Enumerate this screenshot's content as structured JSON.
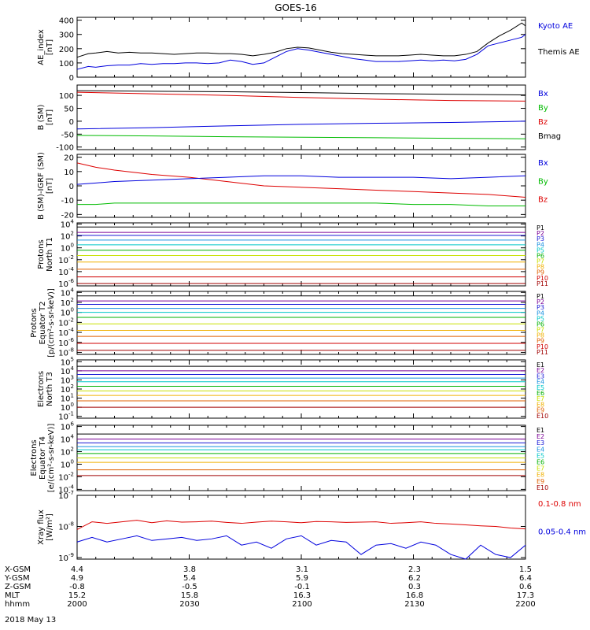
{
  "title": "GOES-16",
  "date_label": "2018 May 13",
  "orbit_rows": [
    {
      "name": "X-GSM",
      "values": [
        "4.4",
        "3.8",
        "3.1",
        "2.3",
        "1.5"
      ]
    },
    {
      "name": "Y-GSM",
      "values": [
        "4.9",
        "5.4",
        "5.9",
        "6.2",
        "6.4"
      ]
    },
    {
      "name": "Z-GSM",
      "values": [
        "-0.8",
        "-0.5",
        "-0.1",
        "0.3",
        "0.6"
      ]
    },
    {
      "name": "MLT",
      "values": [
        "15.2",
        "15.8",
        "16.3",
        "16.8",
        "17.3"
      ]
    },
    {
      "name": "hhmm",
      "values": [
        "2000",
        "2030",
        "2100",
        "2130",
        "2200"
      ]
    }
  ],
  "colors": {
    "blue": "#0000dd",
    "green": "#00bb00",
    "red": "#dd0000",
    "black": "#000000"
  },
  "chart_data": [
    {
      "type": "line",
      "ylabel": "AE_index\n[nT]",
      "ylim": [
        0,
        420
      ],
      "yticks": [
        "0",
        "100",
        "200",
        "300",
        "400"
      ],
      "ytick_values": [
        0,
        100,
        200,
        300,
        400
      ],
      "legend": [
        {
          "label": "Kyoto AE",
          "color": "#0000dd"
        },
        {
          "label": "Themis AE",
          "color": "#000000"
        }
      ],
      "x": [
        0,
        3,
        5,
        8,
        11,
        14,
        17,
        20,
        23,
        26,
        29,
        32,
        35,
        38,
        41,
        44,
        47,
        50,
        53,
        56,
        59,
        62,
        65,
        68,
        71,
        74,
        77,
        80,
        83,
        86,
        89,
        92,
        95,
        98,
        101,
        104,
        107,
        110,
        113,
        116,
        119,
        120
      ],
      "series": [
        {
          "name": "Themis AE",
          "color": "#000000",
          "values": [
            140,
            165,
            170,
            180,
            170,
            175,
            170,
            170,
            165,
            160,
            165,
            170,
            170,
            165,
            165,
            160,
            150,
            160,
            175,
            200,
            210,
            205,
            190,
            175,
            165,
            160,
            155,
            150,
            150,
            150,
            155,
            160,
            155,
            150,
            150,
            160,
            180,
            240,
            290,
            330,
            380,
            360
          ]
        },
        {
          "name": "Kyoto AE",
          "color": "#0000dd",
          "values": [
            55,
            75,
            70,
            80,
            85,
            85,
            95,
            90,
            95,
            95,
            100,
            100,
            95,
            100,
            120,
            110,
            90,
            100,
            140,
            180,
            200,
            190,
            175,
            160,
            145,
            130,
            120,
            110,
            110,
            110,
            115,
            120,
            115,
            120,
            115,
            125,
            160,
            220,
            240,
            260,
            280,
            300
          ]
        }
      ]
    },
    {
      "type": "line",
      "ylabel": "B (SM)\n[nT]",
      "ylim": [
        -110,
        140
      ],
      "yticks": [
        "-100",
        "-50",
        "0",
        "50",
        "100"
      ],
      "ytick_values": [
        -100,
        -50,
        0,
        50,
        100
      ],
      "legend": [
        {
          "label": "Bx",
          "color": "#0000dd"
        },
        {
          "label": "By",
          "color": "#00bb00"
        },
        {
          "label": "Bz",
          "color": "#dd0000"
        },
        {
          "label": "Bmag",
          "color": "#000000"
        }
      ],
      "x": [
        0,
        20,
        40,
        60,
        80,
        100,
        120
      ],
      "series": [
        {
          "name": "Bmag",
          "color": "#000000",
          "values": [
            118,
            116,
            114,
            111,
            107,
            104,
            102
          ]
        },
        {
          "name": "Bz",
          "color": "#dd0000",
          "values": [
            112,
            106,
            100,
            92,
            85,
            80,
            78
          ]
        },
        {
          "name": "Bx",
          "color": "#0000dd",
          "values": [
            -30,
            -25,
            -18,
            -12,
            -8,
            -5,
            0
          ]
        },
        {
          "name": "By",
          "color": "#00bb00",
          "values": [
            -55,
            -57,
            -60,
            -62,
            -64,
            -66,
            -68
          ]
        }
      ]
    },
    {
      "type": "line",
      "ylabel": "B (SM)-IGRF (SM)\n[nT]",
      "ylim": [
        -22,
        22
      ],
      "yticks": [
        "-20",
        "-10",
        "0",
        "10",
        "20"
      ],
      "ytick_values": [
        -20,
        -10,
        0,
        10,
        20
      ],
      "legend": [
        {
          "label": "Bx",
          "color": "#0000dd"
        },
        {
          "label": "By",
          "color": "#00bb00"
        },
        {
          "label": "Bz",
          "color": "#dd0000"
        }
      ],
      "x": [
        0,
        5,
        10,
        20,
        30,
        40,
        50,
        60,
        70,
        80,
        90,
        100,
        110,
        120
      ],
      "series": [
        {
          "name": "Bz",
          "color": "#dd0000",
          "values": [
            16,
            13,
            11,
            8,
            6,
            3,
            0,
            -1,
            -2,
            -3,
            -4,
            -5,
            -6,
            -8
          ]
        },
        {
          "name": "Bx",
          "color": "#0000dd",
          "values": [
            1,
            2,
            3,
            4,
            5,
            6,
            7,
            7,
            6,
            6,
            6,
            5,
            6,
            7
          ]
        },
        {
          "name": "By",
          "color": "#00bb00",
          "values": [
            -13,
            -13,
            -12,
            -12,
            -12,
            -12,
            -12,
            -12,
            -12,
            -12,
            -13,
            -13,
            -14,
            -14
          ]
        }
      ]
    },
    {
      "type": "line",
      "yscale": "log",
      "ylabel": "Protons\nNorth T1",
      "ylim": [
        -6.4,
        4.2
      ],
      "yticks": [
        "10^-6",
        "10^-4",
        "10^-2",
        "10^0",
        "10^2",
        "10^4"
      ],
      "ytick_values": [
        -6,
        -4,
        -2,
        0,
        2,
        4
      ],
      "legend_labels": [
        "P1",
        "P2",
        "P3",
        "P4",
        "P5",
        "P6",
        "P7",
        "P8",
        "P9",
        "P10",
        "P11"
      ],
      "x": [
        0,
        120
      ],
      "series_log10": [
        3.5,
        2.6,
        2.1,
        1.3,
        0.5,
        -0.4,
        -1.3,
        -2.4,
        -3.6,
        -4.9,
        -6.0
      ]
    },
    {
      "type": "line",
      "yscale": "log",
      "ylabel": "Protons\nEquator T2\n[p/(cm²-s-sr-keV)]",
      "ylim": [
        -8.4,
        4.2
      ],
      "yticks": [
        "10^-8",
        "10^-6",
        "10^-4",
        "10^-2",
        "10^0",
        "10^2",
        "10^4"
      ],
      "ytick_values": [
        -8,
        -6,
        -4,
        -2,
        0,
        2,
        4
      ],
      "legend_labels": [
        "P1",
        "P2",
        "P3",
        "P4",
        "P5",
        "P6",
        "P7",
        "P8",
        "P9",
        "P10",
        "P11"
      ],
      "x": [
        0,
        120
      ],
      "series_log10": [
        3.3,
        2.3,
        1.6,
        0.8,
        0.0,
        -1.0,
        -2.3,
        -3.6,
        -4.8,
        -6.2,
        -7.6
      ]
    },
    {
      "type": "line",
      "yscale": "log",
      "ylabel": "Electrons\nNorth T3",
      "ylim": [
        -1.2,
        5.2
      ],
      "yticks": [
        "10^-1",
        "10^0",
        "10^1",
        "10^2",
        "10^3",
        "10^4",
        "10^5"
      ],
      "ytick_values": [
        -1,
        0,
        1,
        2,
        3,
        4,
        5
      ],
      "legend_labels": [
        "E1",
        "E2",
        "E3",
        "E4",
        "E5",
        "E6",
        "E7",
        "E8",
        "E9",
        "E10"
      ],
      "x": [
        0,
        120
      ],
      "series_log10": [
        4.5,
        4.0,
        3.6,
        3.2,
        2.8,
        2.3,
        1.8,
        1.3,
        0.7,
        0.0
      ]
    },
    {
      "type": "line",
      "yscale": "log",
      "ylabel": "Electrons\nEquator T4\n[e/(cm²-s-sr-keV)]",
      "ylim": [
        -4.2,
        6.2
      ],
      "yticks": [
        "10^-4",
        "10^-2",
        "10^0",
        "10^2",
        "10^4",
        "10^6"
      ],
      "ytick_values": [
        -4,
        -2,
        0,
        2,
        4,
        6
      ],
      "legend_labels": [
        "E1",
        "E2",
        "E3",
        "E4",
        "E5",
        "E6",
        "E7",
        "E8",
        "E9",
        "E10"
      ],
      "x": [
        0,
        120
      ],
      "series_log10": [
        4.8,
        4.0,
        3.4,
        2.8,
        2.3,
        1.7,
        1.0,
        0.3,
        -0.9,
        -1.8
      ]
    },
    {
      "type": "line",
      "yscale": "log",
      "ylabel": "Xray flux\n[W/m²]",
      "ylim": [
        -9.05,
        -7.0
      ],
      "yticks": [
        "10^-9",
        "10^-8",
        "10^-7"
      ],
      "ytick_values": [
        -9,
        -8,
        -7
      ],
      "legend": [
        {
          "label": "0.1-0.8 nm",
          "color": "#dd0000"
        },
        {
          "label": "0.05-0.4 nm",
          "color": "#0000dd"
        }
      ],
      "x": [
        0,
        4,
        8,
        12,
        16,
        20,
        24,
        28,
        32,
        36,
        40,
        44,
        48,
        52,
        56,
        60,
        64,
        68,
        72,
        76,
        80,
        84,
        88,
        92,
        96,
        100,
        104,
        108,
        112,
        116,
        120
      ],
      "series": [
        {
          "name": "0.1-0.8 nm",
          "color": "#dd0000",
          "values_log10": [
            -8.1,
            -7.85,
            -7.9,
            -7.85,
            -7.8,
            -7.88,
            -7.82,
            -7.86,
            -7.85,
            -7.83,
            -7.87,
            -7.9,
            -7.86,
            -7.83,
            -7.85,
            -7.88,
            -7.84,
            -7.85,
            -7.87,
            -7.86,
            -7.85,
            -7.9,
            -7.88,
            -7.85,
            -7.9,
            -7.92,
            -7.95,
            -7.98,
            -8.0,
            -8.05,
            -8.08
          ]
        },
        {
          "name": "0.05-0.4 nm",
          "color": "#0000dd",
          "values_log10": [
            -8.5,
            -8.35,
            -8.5,
            -8.4,
            -8.3,
            -8.45,
            -8.4,
            -8.35,
            -8.45,
            -8.4,
            -8.3,
            -8.6,
            -8.5,
            -8.7,
            -8.4,
            -8.3,
            -8.6,
            -8.45,
            -8.5,
            -8.9,
            -8.6,
            -8.55,
            -8.7,
            -8.5,
            -8.6,
            -8.9,
            -9.05,
            -8.6,
            -8.9,
            -9.0,
            -8.6
          ]
        }
      ]
    }
  ]
}
